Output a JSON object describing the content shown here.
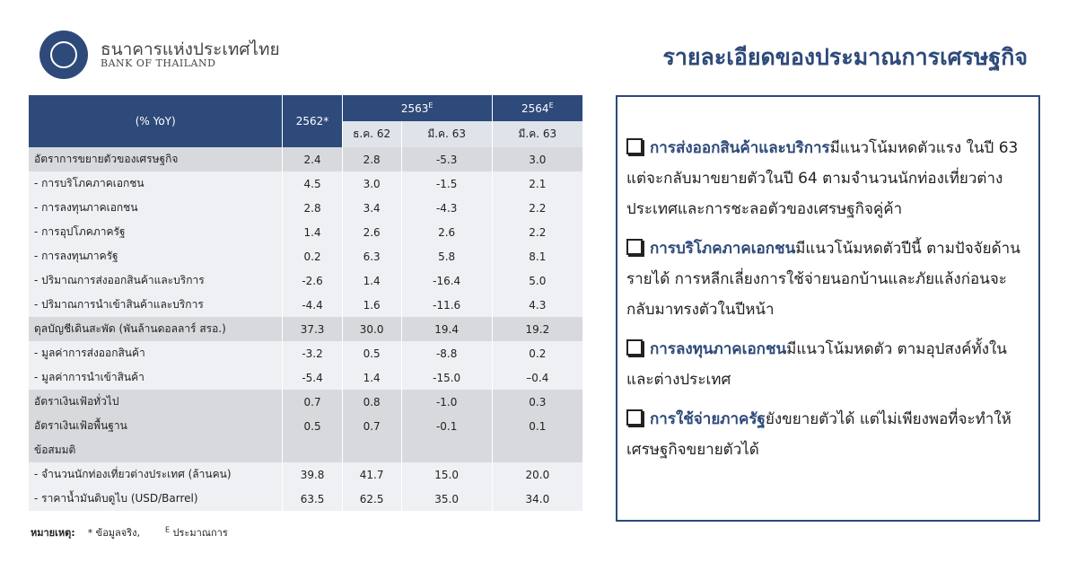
{
  "header": {
    "bank_name_th": "ธนาคารแห่งประเทศไทย",
    "bank_name_en": "BANK OF THAILAND",
    "title": "รายละเอียดของประมาณการเศรษฐกิจ"
  },
  "table": {
    "head": {
      "label": "(% YoY)",
      "col1": "2562*",
      "group1": {
        "text": "2563",
        "sup": "E"
      },
      "group2": {
        "text": "2564",
        "sup": "E"
      },
      "sub": [
        "ธ.ค. 62",
        "มี.ค. 63",
        "มี.ค. 63"
      ]
    },
    "rows": [
      {
        "label": "อัตราการขยายตัวของเศรษฐกิจ",
        "values": [
          "2.4",
          "2.8",
          "-5.3",
          "3.0"
        ],
        "shaded": true
      },
      {
        "label": "- การบริโภคภาคเอกชน",
        "values": [
          "4.5",
          "3.0",
          "-1.5",
          "2.1"
        ],
        "shaded": false
      },
      {
        "label": "- การลงทุนภาคเอกชน",
        "values": [
          "2.8",
          "3.4",
          "-4.3",
          "2.2"
        ],
        "shaded": false
      },
      {
        "label": "- การอุปโภคภาครัฐ",
        "values": [
          "1.4",
          "2.6",
          "2.6",
          "2.2"
        ],
        "shaded": false
      },
      {
        "label": "- การลงทุนภาครัฐ",
        "values": [
          "0.2",
          "6.3",
          "5.8",
          "8.1"
        ],
        "shaded": false
      },
      {
        "label": "- ปริมาณการส่งออกสินค้าและบริการ",
        "values": [
          "-2.6",
          "1.4",
          "-16.4",
          "5.0"
        ],
        "shaded": false
      },
      {
        "label": "- ปริมาณการนำเข้าสินค้าและบริการ",
        "values": [
          "-4.4",
          "1.6",
          "-11.6",
          "4.3"
        ],
        "shaded": false
      },
      {
        "label": "ดุลบัญชีเดินสะพัด (พันล้านดอลลาร์ สรอ.)",
        "values": [
          "37.3",
          "30.0",
          "19.4",
          "19.2"
        ],
        "shaded": true
      },
      {
        "label": "- มูลค่าการส่งออกสินค้า",
        "values": [
          "-3.2",
          "0.5",
          "-8.8",
          "0.2"
        ],
        "shaded": false
      },
      {
        "label": "- มูลค่าการนำเข้าสินค้า",
        "values": [
          "-5.4",
          "1.4",
          "-15.0",
          "–0.4"
        ],
        "shaded": false
      },
      {
        "label": "อัตราเงินเฟ้อทั่วไป",
        "values": [
          "0.7",
          "0.8",
          "-1.0",
          "0.3"
        ],
        "shaded": true
      },
      {
        "label": "อัตราเงินเฟ้อพื้นฐาน",
        "values": [
          "0.5",
          "0.7",
          "-0.1",
          "0.1"
        ],
        "shaded": true
      },
      {
        "label": "ข้อสมมติ",
        "values": [],
        "shaded": true
      },
      {
        "label": "- จำนวนนักท่องเที่ยวต่างประเทศ (ล้านคน)",
        "values": [
          "39.8",
          "41.7",
          "15.0",
          "20.0"
        ],
        "shaded": false
      },
      {
        "label": "- ราคาน้ำมันดิบดูไบ (USD/Barrel)",
        "values": [
          "63.5",
          "62.5",
          "35.0",
          "34.0"
        ],
        "shaded": false
      }
    ]
  },
  "footnote": {
    "label": "หมายเหตุ:",
    "actual": "* ข้อมูลจริง,",
    "sup": "E",
    "estimate": "ประมาณการ"
  },
  "summary": [
    {
      "lead": "การส่งออกสินค้าและบริการ",
      "text": "มีแนวโน้มหดตัวแรง ในปี 63 แต่จะกลับมาขยายตัวในปี 64 ตามจำนวนนักท่องเที่ยวต่างประเทศและการชะลอตัวของเศรษฐกิจคู่ค้า"
    },
    {
      "lead": "การบริโภคภาคเอกชน",
      "text": "มีแนวโน้มหดตัวปีนี้ ตามปัจจัยด้านรายได้ การหลีกเลี่ยงการใช้จ่ายนอกบ้านและภัยแล้งก่อนจะกลับมาทรงตัวในปีหน้า"
    },
    {
      "lead": "การลงทุนภาคเอกชน",
      "text": "มีแนวโน้มหดตัว ตามอุปสงค์ทั้งในและต่างประเทศ"
    },
    {
      "lead": "การใช้จ่ายภาครัฐ",
      "text": "ยังขยายตัวได้ แต่ไม่เพียงพอที่จะทำให้เศรษฐกิจขยายตัวได้"
    }
  ]
}
